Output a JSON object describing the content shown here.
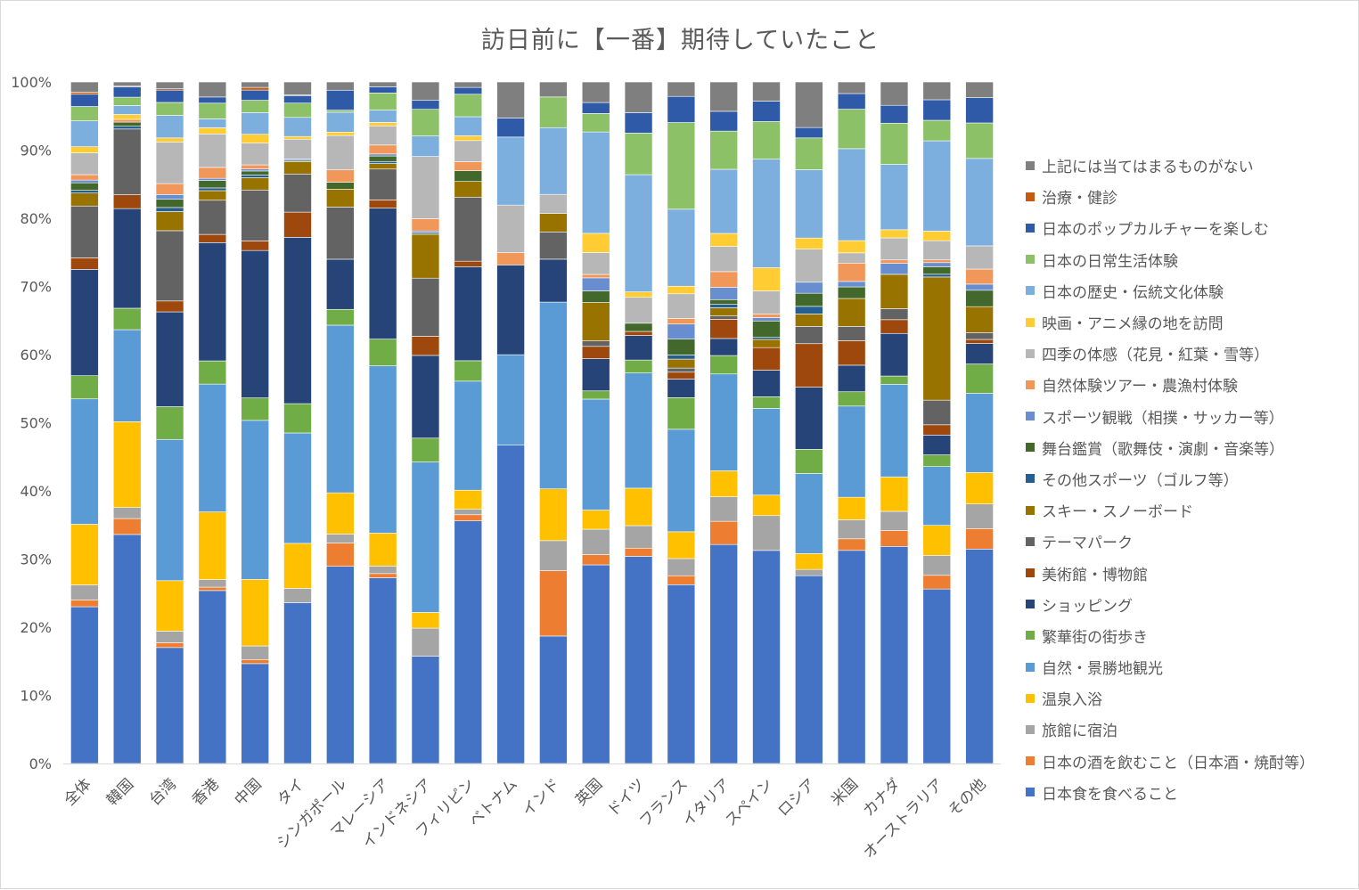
{
  "chart_data": {
    "type": "bar",
    "stacked": true,
    "percent": true,
    "title": "訪日前に【一番】期待していたこと",
    "ylim": [
      0,
      100
    ],
    "yticks": [
      "0%",
      "10%",
      "20%",
      "30%",
      "40%",
      "50%",
      "60%",
      "70%",
      "80%",
      "90%",
      "100%"
    ],
    "gridlines": false,
    "legend_position": "right",
    "categories": [
      "全体",
      "韓国",
      "台湾",
      "香港",
      "中国",
      "タイ",
      "シンガポール",
      "マレーシア",
      "インドネシア",
      "フィリピン",
      "ベトナム",
      "インド",
      "英国",
      "ドイツ",
      "フランス",
      "イタリア",
      "スペイン",
      "ロシア",
      "米国",
      "カナダ",
      "オーストラリア",
      "その他"
    ],
    "series": [
      {
        "name": "日本食を食べること",
        "color": "#4472c4",
        "values": [
          23.0,
          33.1,
          17.0,
          25.3,
          14.7,
          23.6,
          28.7,
          27.1,
          15.7,
          35.6,
          46.8,
          18.7,
          29.0,
          30.4,
          26.0,
          32.1,
          31.2,
          27.2,
          31.3,
          31.6,
          25.5,
          31.4
        ]
      },
      {
        "name": "日本の酒を飲むこと（日本酒・焼酎等）",
        "color": "#ed7d31",
        "values": [
          1.0,
          2.3,
          0.7,
          0.5,
          0.6,
          0.0,
          3.4,
          0.6,
          0.0,
          0.9,
          0.0,
          9.6,
          1.5,
          1.2,
          1.3,
          3.4,
          0.0,
          0.0,
          1.7,
          2.3,
          2.0,
          3.0
        ]
      },
      {
        "name": "旅館に宿泊",
        "color": "#a5a5a5",
        "values": [
          2.2,
          1.6,
          1.7,
          1.1,
          2.0,
          2.1,
          1.3,
          1.1,
          4.1,
          0.8,
          0.0,
          4.4,
          3.7,
          3.3,
          2.5,
          3.6,
          5.1,
          0.9,
          2.8,
          2.8,
          2.9,
          3.6
        ]
      },
      {
        "name": "温泉入浴",
        "color": "#ffc000",
        "values": [
          8.9,
          12.4,
          7.4,
          9.9,
          9.8,
          6.6,
          6.0,
          4.8,
          2.3,
          2.8,
          0.0,
          7.6,
          2.8,
          5.5,
          3.9,
          3.8,
          3.0,
          2.3,
          3.3,
          5.0,
          4.4,
          4.6
        ]
      },
      {
        "name": "自然・景勝地観光",
        "color": "#5b9bd5",
        "values": [
          18.4,
          13.3,
          20.7,
          18.7,
          23.4,
          16.2,
          24.4,
          24.4,
          22.0,
          16.0,
          13.3,
          27.4,
          16.2,
          16.9,
          14.9,
          14.2,
          12.7,
          11.6,
          13.4,
          13.5,
          8.6,
          11.6
        ]
      },
      {
        "name": "繁華街の街歩き",
        "color": "#70ad47",
        "values": [
          3.4,
          3.1,
          4.8,
          3.4,
          3.3,
          4.3,
          2.3,
          3.9,
          3.5,
          3.0,
          0.0,
          0.0,
          1.2,
          1.9,
          4.6,
          2.7,
          1.7,
          3.5,
          2.1,
          1.2,
          1.7,
          4.3
        ]
      },
      {
        "name": "ショッピング",
        "color": "#264478",
        "values": [
          15.6,
          14.4,
          13.9,
          17.3,
          21.7,
          24.4,
          7.3,
          19.1,
          12.1,
          13.8,
          13.2,
          6.3,
          4.7,
          3.6,
          2.7,
          2.5,
          3.9,
          9.0,
          3.9,
          6.2,
          2.9,
          3.0
        ]
      },
      {
        "name": "美術館・博物館",
        "color": "#9e480e",
        "values": [
          1.7,
          2.0,
          1.6,
          1.2,
          1.4,
          3.7,
          0.0,
          1.2,
          2.8,
          0.8,
          0.0,
          0.0,
          1.8,
          0.6,
          1.0,
          2.8,
          3.3,
          6.3,
          3.6,
          2.0,
          1.5,
          0.6
        ]
      },
      {
        "name": "テーマパーク",
        "color": "#636363",
        "values": [
          7.6,
          9.5,
          10.3,
          5.0,
          7.5,
          5.6,
          7.6,
          4.5,
          8.5,
          9.4,
          0.0,
          4.0,
          0.8,
          0.0,
          0.6,
          0.5,
          0.0,
          2.5,
          2.1,
          1.6,
          3.6,
          1.0
        ]
      },
      {
        "name": "スキー・スノーボード",
        "color": "#997300",
        "values": [
          1.9,
          0.0,
          2.8,
          1.4,
          1.8,
          1.8,
          2.6,
          0.8,
          6.4,
          2.3,
          0.0,
          2.7,
          5.6,
          0.0,
          1.3,
          1.2,
          1.2,
          1.8,
          4.1,
          5.0,
          18.0,
          3.8
        ]
      },
      {
        "name": "その他スポーツ（ゴルフ等）",
        "color": "#255e91",
        "values": [
          0.4,
          0.4,
          0.6,
          0.4,
          0.4,
          0.0,
          0.0,
          0.3,
          0.0,
          0.0,
          0.0,
          0.0,
          0.0,
          0.0,
          0.6,
          0.5,
          0.3,
          1.1,
          0.0,
          0.0,
          0.4,
          0.0
        ]
      },
      {
        "name": "舞台鑑賞（歌舞伎・演劇・音楽等）",
        "color": "#43682b",
        "values": [
          1.1,
          0.6,
          1.2,
          1.1,
          0.6,
          0.2,
          1.0,
          0.8,
          0.2,
          1.6,
          0.0,
          0.0,
          1.7,
          1.2,
          2.3,
          0.7,
          2.4,
          1.9,
          1.7,
          0.0,
          1.1,
          2.4
        ]
      },
      {
        "name": "スポーツ観戦（相撲・サッカー等）",
        "color": "#698ed0",
        "values": [
          0.4,
          0.0,
          0.7,
          0.3,
          0.3,
          0.2,
          0.0,
          0.3,
          0.3,
          0.0,
          0.0,
          0.0,
          1.9,
          0.0,
          2.2,
          1.8,
          0.5,
          1.6,
          0.8,
          1.6,
          0.6,
          0.9
        ]
      },
      {
        "name": "自然体験ツアー・農漁村体験",
        "color": "#f1975a",
        "values": [
          0.8,
          0.4,
          1.6,
          1.6,
          0.6,
          0.0,
          1.8,
          1.3,
          1.8,
          1.3,
          1.8,
          0.0,
          0.5,
          0.0,
          0.8,
          2.3,
          0.5,
          0.0,
          2.7,
          0.5,
          0.4,
          2.2
        ]
      },
      {
        "name": "四季の体感（花見・紅葉・雪等）",
        "color": "#b7b7b7",
        "values": [
          3.2,
          0.0,
          6.1,
          4.9,
          3.2,
          2.9,
          5.0,
          2.8,
          9.1,
          3.1,
          7.0,
          2.8,
          3.2,
          3.8,
          3.6,
          3.7,
          3.4,
          4.8,
          1.5,
          3.2,
          2.8,
          3.4
        ]
      },
      {
        "name": "映画・アニメ縁の地を訪問",
        "color": "#ffcd33",
        "values": [
          0.9,
          0.7,
          0.6,
          0.9,
          1.3,
          0.4,
          0.5,
          0.5,
          0.0,
          0.7,
          0.0,
          0.0,
          2.8,
          0.8,
          1.1,
          1.9,
          3.4,
          1.6,
          1.8,
          1.2,
          1.4,
          0.0
        ]
      },
      {
        "name": "日本の歴史・伝統文化体験",
        "color": "#7cafdd",
        "values": [
          3.8,
          1.3,
          3.3,
          1.3,
          3.2,
          2.8,
          2.9,
          1.8,
          3.0,
          2.8,
          10.0,
          9.8,
          14.8,
          17.2,
          11.2,
          9.4,
          15.9,
          9.9,
          13.5,
          9.5,
          13.2,
          12.8
        ]
      },
      {
        "name": "日本の日常生活体験",
        "color": "#8cc168",
        "values": [
          2.1,
          1.2,
          1.9,
          2.3,
          1.8,
          2.1,
          0.3,
          2.5,
          3.9,
          3.3,
          0.0,
          4.5,
          2.7,
          6.1,
          12.6,
          5.6,
          5.5,
          4.6,
          5.8,
          6.0,
          3.0,
          5.2
        ]
      },
      {
        "name": "日本のポップカルチャーを楽しむ",
        "color": "#2e5aa8",
        "values": [
          1.8,
          1.5,
          1.8,
          0.9,
          1.5,
          1.1,
          2.9,
          0.9,
          1.3,
          1.0,
          2.8,
          0.0,
          1.6,
          3.0,
          3.8,
          2.9,
          3.0,
          1.5,
          2.3,
          2.6,
          3.0,
          3.7
        ]
      },
      {
        "name": "治療・健診",
        "color": "#c55a11",
        "values": [
          0.3,
          0.1,
          0.2,
          0.0,
          0.4,
          0.1,
          0.0,
          0.0,
          0.0,
          0.0,
          0.0,
          0.0,
          0.0,
          0.0,
          0.0,
          0.0,
          0.0,
          0.0,
          0.0,
          0.0,
          0.0,
          0.0
        ]
      },
      {
        "name": "上記には当てはまるものがない",
        "color": "#7f7f7f",
        "values": [
          1.5,
          0.6,
          1.0,
          2.2,
          0.8,
          1.9,
          1.2,
          0.7,
          2.7,
          0.8,
          5.3,
          2.2,
          3.0,
          4.5,
          2.1,
          4.3,
          2.8,
          6.6,
          1.7,
          3.4,
          2.6,
          2.3
        ]
      }
    ]
  }
}
